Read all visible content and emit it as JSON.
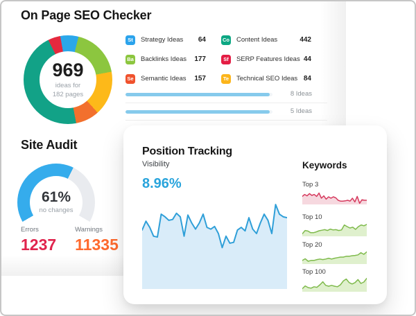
{
  "on_page": {
    "title": "On Page SEO Checker",
    "donut_center": {
      "value": "969",
      "line1": "ideas for",
      "line2": "182 pages"
    },
    "donut_segments": [
      {
        "label": "Strategy Ideas",
        "value": 64,
        "color": "#2BA7EA"
      },
      {
        "label": "Backlinks Ideas",
        "value": 177,
        "color": "#8CC63F"
      },
      {
        "label": "Semantic Ideas",
        "value": 157,
        "color": "#FDB919"
      },
      {
        "label": "Technical SEO Ideas",
        "value": 84,
        "color": "#F2702D"
      },
      {
        "label": "Content Ideas",
        "value": 442,
        "color": "#12A287"
      },
      {
        "label": "SERP Features Ideas",
        "value": 44,
        "color": "#E5293E"
      }
    ],
    "ideas": [
      {
        "badge": "St",
        "badge_color": "#2BA3EC",
        "label": "Strategy Ideas",
        "value": "64"
      },
      {
        "badge": "Ba",
        "badge_color": "#8CC63F",
        "label": "Backlinks Ideas",
        "value": "177"
      },
      {
        "badge": "Se",
        "badge_color": "#F0522D",
        "label": "Semantic Ideas",
        "value": "157"
      },
      {
        "badge": "Co",
        "badge_color": "#0DA783",
        "label": "Content Ideas",
        "value": "442"
      },
      {
        "badge": "Sf",
        "badge_color": "#E41D44",
        "label": "SERP Features Ideas",
        "value": "44"
      },
      {
        "badge": "Te",
        "badge_color": "#FCB51B",
        "label": "Technical SEO Ideas",
        "value": "84"
      }
    ],
    "bars": [
      {
        "label": "8 Ideas",
        "percent": 98,
        "color": "#86CAEC"
      },
      {
        "label": "5 Ideas",
        "percent": 98,
        "color": "#86CAEC"
      }
    ]
  },
  "site_audit": {
    "title": "Site Audit",
    "gauge": {
      "percent": 61,
      "display": "61%",
      "subtitle": "no changes",
      "color": "#35ACEC",
      "track_color": "#E9EBEF"
    },
    "errors": {
      "label": "Errors",
      "value": "1237",
      "color": "#E0244D"
    },
    "warnings": {
      "label": "Warnings",
      "value": "11335",
      "color": "#FF6A2E"
    }
  },
  "position_tracking": {
    "title": "Position Tracking",
    "visibility": {
      "label": "Visibility",
      "value": "8.96%",
      "color": "#29A4DC",
      "line_color": "#2F9FD8",
      "fill_color": "#D9ECF9",
      "values": [
        67,
        77,
        70,
        60,
        59,
        85,
        82,
        78,
        79,
        86,
        82,
        60,
        84,
        75,
        68,
        75,
        85,
        70,
        68,
        71,
        63,
        47,
        60,
        52,
        53,
        67,
        70,
        66,
        81,
        68,
        63,
        75,
        85,
        78,
        63,
        96,
        85,
        82,
        81
      ]
    },
    "keywords_title": "Keywords",
    "keywords": [
      {
        "label": "Top 3",
        "line_color": "#D63A5E",
        "fill_color": "#F6D8DF",
        "values": [
          58,
          72,
          62,
          78,
          65,
          72,
          58,
          82,
          45,
          62,
          38,
          55,
          45,
          55,
          48,
          30,
          24,
          24,
          26,
          30,
          24,
          45,
          18,
          58,
          8,
          34,
          30,
          30
        ]
      },
      {
        "label": "Top 10",
        "line_color": "#7FBA4C",
        "fill_color": "#DFF0CD",
        "values": [
          18,
          42,
          38,
          26,
          26,
          32,
          40,
          44,
          48,
          42,
          52,
          46,
          48,
          42,
          46,
          82,
          70,
          60,
          66,
          50,
          70,
          82,
          76,
          86
        ]
      },
      {
        "label": "Top 20",
        "line_color": "#7FBA4C",
        "fill_color": "#DFF0CD",
        "values": [
          26,
          38,
          20,
          26,
          26,
          32,
          36,
          32,
          36,
          42,
          36,
          42,
          46,
          50,
          50,
          56,
          56,
          60,
          62,
          66,
          82,
          70,
          88
        ]
      },
      {
        "label": "Top 100",
        "line_color": "#7FBA4C",
        "fill_color": "#DFF0CD",
        "values": [
          22,
          42,
          30,
          26,
          36,
          32,
          50,
          72,
          46,
          40,
          46,
          40,
          36,
          50,
          78,
          92,
          66,
          56,
          66,
          88,
          60,
          70,
          97
        ]
      }
    ]
  }
}
